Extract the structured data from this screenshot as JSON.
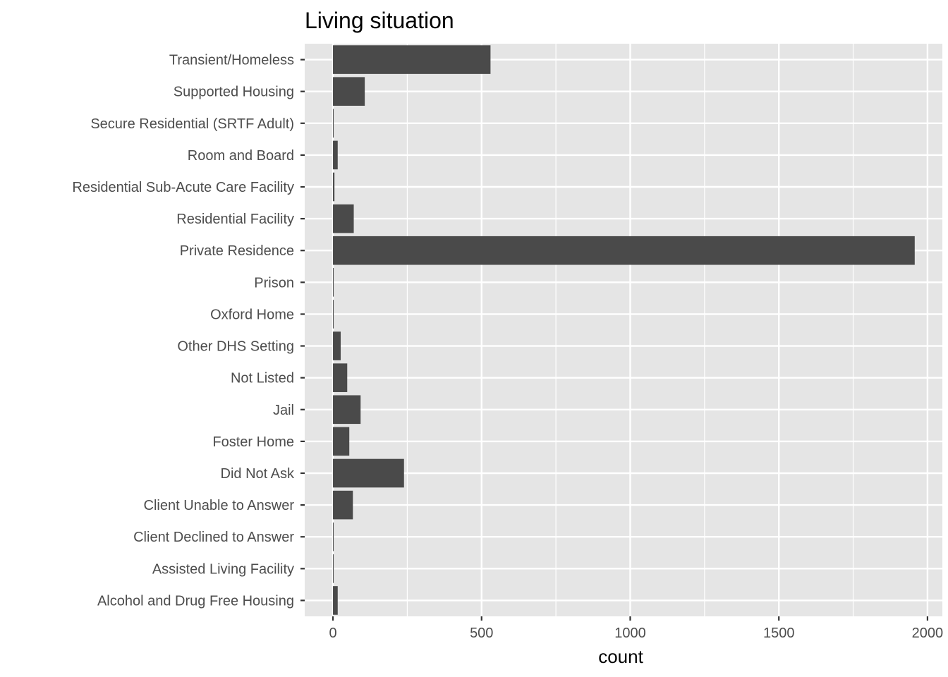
{
  "chart_data": {
    "type": "bar",
    "orientation": "horizontal",
    "title": "Living situation",
    "xlabel": "count",
    "ylabel": "",
    "categories": [
      "Transient/Homeless",
      "Supported Housing",
      "Secure Residential (SRTF Adult)",
      "Room and Board",
      "Residential Sub-Acute Care Facility",
      "Residential Facility",
      "Private Residence",
      "Prison",
      "Oxford Home",
      "Other DHS Setting",
      "Not Listed",
      "Jail",
      "Foster Home",
      "Did Not Ask",
      "Client Unable to Answer",
      "Client Declined to Answer",
      "Assisted Living Facility",
      "Alcohol and Drug Free Housing"
    ],
    "values": [
      530,
      107,
      2,
      16,
      5,
      70,
      1957,
      2,
      2,
      26,
      48,
      93,
      55,
      239,
      67,
      2,
      2,
      16
    ],
    "xlim": [
      -95,
      2050
    ],
    "xticks": [
      0,
      500,
      1000,
      1500,
      2000
    ],
    "xtick_labels": [
      "0",
      "500",
      "1000",
      "1500",
      "2000"
    ],
    "grid": true,
    "colors": {
      "bar": "#4a4a4a",
      "panel": "#e5e5e5",
      "grid": "#ffffff",
      "tick_text": "#4d4d4d"
    }
  }
}
